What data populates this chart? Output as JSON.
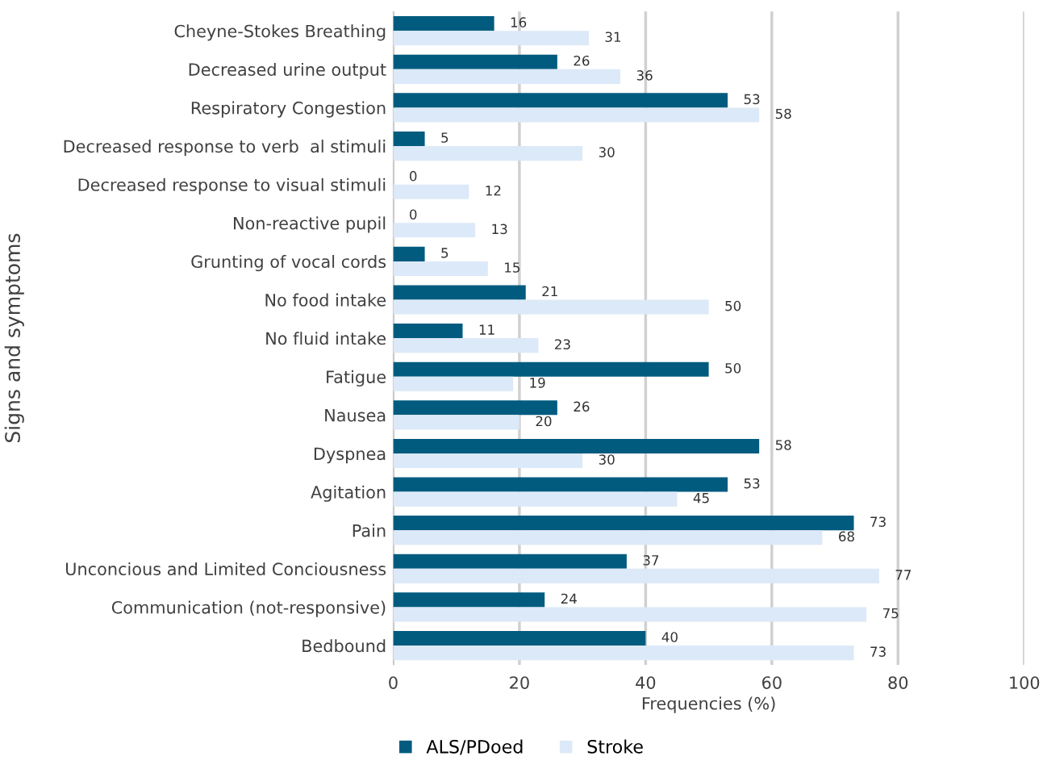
{
  "chart_data": {
    "type": "bar",
    "orientation": "horizontal",
    "xlabel": "Frequencies (%)",
    "ylabel": "Signs and symptoms",
    "categories": [
      "Cheyne-Stokes Breathing",
      "Decreased urine output",
      "Respiratory Congestion",
      "Decreased response to verb  al stimuli",
      "Decreased response to visual stimuli",
      "Non-reactive pupil",
      "Grunting of vocal cords",
      "No food intake",
      "No fluid intake",
      "Fatigue",
      "Nausea",
      "Dyspnea",
      "Agitation",
      "Pain",
      "Unconcious and Limited Conciousness",
      "Communication (not-responsive)",
      "Bedbound"
    ],
    "series": [
      {
        "name": "ALS/PDoed",
        "color": "#005b7f",
        "values": [
          16,
          26,
          53,
          5,
          0,
          0,
          5,
          21,
          11,
          50,
          26,
          58,
          53,
          73,
          37,
          24,
          40
        ]
      },
      {
        "name": "Stroke",
        "color": "#dce9f8",
        "values": [
          31,
          36,
          58,
          30,
          12,
          13,
          15,
          50,
          23,
          19,
          20,
          30,
          45,
          68,
          77,
          75,
          73
        ]
      }
    ],
    "xlim": [
      0,
      100
    ],
    "xticks": [
      0,
      20,
      40,
      60,
      80,
      100
    ],
    "grid": "x",
    "legend": "bottom",
    "data_labels": true
  }
}
